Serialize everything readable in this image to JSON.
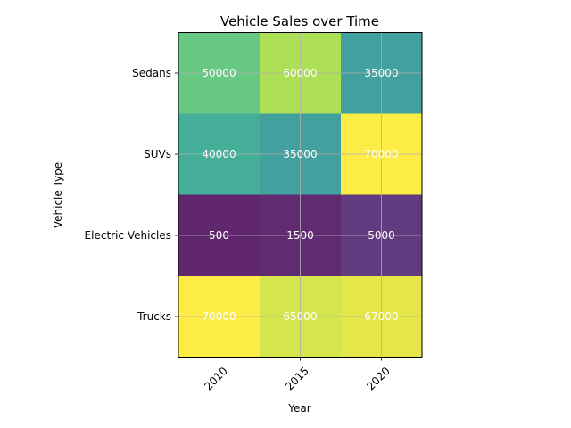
{
  "chart_data": {
    "type": "heatmap",
    "title": "Vehicle Sales over Time",
    "xlabel": "Year",
    "ylabel": "Vehicle Type",
    "x_categories": [
      "2010",
      "2015",
      "2020"
    ],
    "y_categories": [
      "Sedans",
      "SUVs",
      "Electric Vehicles",
      "Trucks"
    ],
    "values": [
      [
        50000,
        60000,
        35000
      ],
      [
        40000,
        35000,
        70000
      ],
      [
        500,
        1500,
        5000
      ],
      [
        70000,
        65000,
        67000
      ]
    ],
    "colormap": "viridis",
    "cell_alpha": 0.85,
    "color_range": [
      500,
      70000
    ],
    "grid": true,
    "x_tick_rotation_deg": 45
  }
}
